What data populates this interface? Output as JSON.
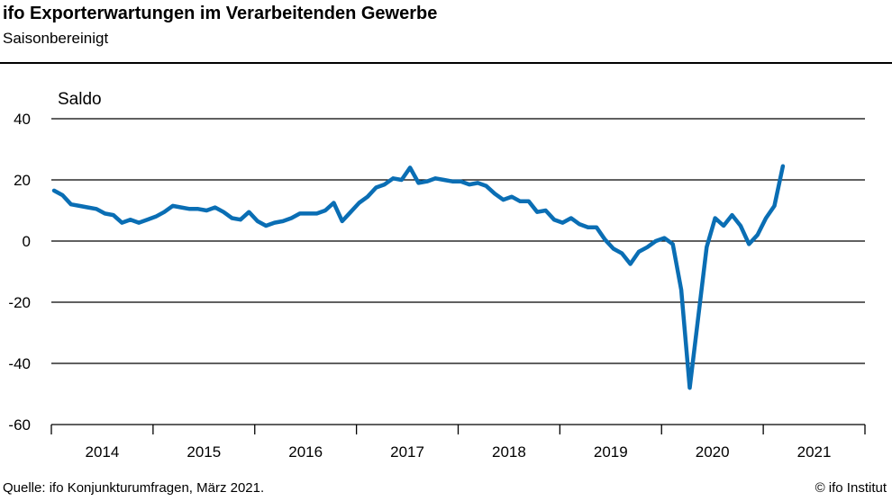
{
  "title": "ifo Exporterwartungen im Verarbeitenden Gewerbe",
  "subtitle": "Saisonbereinigt",
  "source": "Quelle:  ifo Konjunkturumfragen,  März 2021.",
  "copyright": "© ifo Institut",
  "chart_data": {
    "type": "line",
    "ylabel": "Saldo",
    "ylim": [
      -60,
      40
    ],
    "yticks": [
      40,
      20,
      0,
      -20,
      -40,
      -60
    ],
    "xticks": [
      "2014",
      "2015",
      "2016",
      "2017",
      "2018",
      "2019",
      "2020",
      "2021"
    ],
    "grid": true,
    "color": "#0a6eb4",
    "x_start": "2014-01",
    "x_end": "2021-03",
    "frequency": "monthly",
    "values": [
      16.5,
      15,
      12,
      11.5,
      11,
      10.5,
      9,
      8.5,
      6,
      7,
      6,
      7,
      8,
      9.5,
      11.5,
      11,
      10.5,
      10.5,
      10,
      11,
      9.5,
      7.5,
      7,
      9.5,
      6.5,
      5,
      6,
      6.5,
      7.5,
      9,
      9,
      9,
      10,
      12.5,
      6.5,
      9.5,
      12.5,
      14.5,
      17.5,
      18.5,
      20.5,
      20,
      24,
      19,
      19.5,
      20.5,
      20,
      19.5,
      19.5,
      18.5,
      19,
      18,
      15.5,
      13.5,
      14.5,
      13,
      13,
      9.5,
      10,
      7,
      6,
      7.5,
      5.5,
      4.5,
      4.5,
      0.5,
      -2.5,
      -4,
      -7.5,
      -3.5,
      -2,
      0,
      1,
      -1,
      -16,
      -48,
      -25,
      -2,
      7.5,
      5,
      8.5,
      5,
      -1,
      2,
      7.5,
      11.5,
      24.5
    ]
  }
}
